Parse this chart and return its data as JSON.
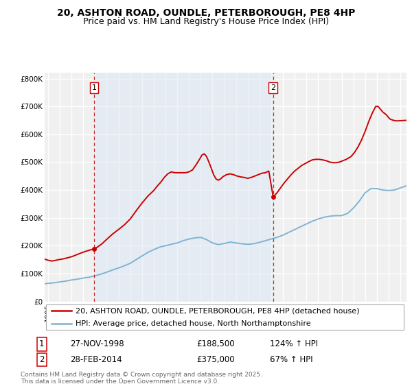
{
  "title": "20, ASHTON ROAD, OUNDLE, PETERBOROUGH, PE8 4HP",
  "subtitle": "Price paid vs. HM Land Registry's House Price Index (HPI)",
  "ylabel_ticks": [
    "£0",
    "£100K",
    "£200K",
    "£300K",
    "£400K",
    "£500K",
    "£600K",
    "£700K",
    "£800K"
  ],
  "ytick_values": [
    0,
    100000,
    200000,
    300000,
    400000,
    500000,
    600000,
    700000,
    800000
  ],
  "ylim": [
    0,
    820000
  ],
  "xlim_start": 1994.7,
  "xlim_end": 2025.5,
  "sale1_x": 1998.92,
  "sale1_y": 188500,
  "sale2_x": 2014.17,
  "sale2_y": 375000,
  "red_color": "#cc0000",
  "blue_color": "#7fb3d3",
  "vline_color": "#cc0000",
  "shade_color": "#dce8f5",
  "background_color": "#f0f0f0",
  "grid_color": "#ffffff",
  "legend_line1": "20, ASHTON ROAD, OUNDLE, PETERBOROUGH, PE8 4HP (detached house)",
  "legend_line2": "HPI: Average price, detached house, North Northamptonshire",
  "table_row1": [
    "1",
    "27-NOV-1998",
    "£188,500",
    "124% ↑ HPI"
  ],
  "table_row2": [
    "2",
    "28-FEB-2014",
    "£375,000",
    "67% ↑ HPI"
  ],
  "footer": "Contains HM Land Registry data © Crown copyright and database right 2025.\nThis data is licensed under the Open Government Licence v3.0.",
  "title_fontsize": 10,
  "subtitle_fontsize": 9,
  "tick_fontsize": 7.5,
  "legend_fontsize": 8,
  "table_fontsize": 8.5,
  "footer_fontsize": 6.5,
  "hpi_x": [
    1994.7,
    1995,
    1995.5,
    1996,
    1996.5,
    1997,
    1997.5,
    1998,
    1998.5,
    1999,
    1999.5,
    2000,
    2000.5,
    2001,
    2001.5,
    2002,
    2002.5,
    2003,
    2003.5,
    2004,
    2004.5,
    2005,
    2005.5,
    2006,
    2006.5,
    2007,
    2007.5,
    2008,
    2008.5,
    2009,
    2009.5,
    2010,
    2010.5,
    2011,
    2011.5,
    2012,
    2012.5,
    2013,
    2013.5,
    2014,
    2014.5,
    2015,
    2015.5,
    2016,
    2016.5,
    2017,
    2017.5,
    2018,
    2018.5,
    2019,
    2019.5,
    2020,
    2020.5,
    2021,
    2021.5,
    2022,
    2022.5,
    2023,
    2023.5,
    2024,
    2024.5,
    2025.5
  ],
  "hpi_y": [
    63000,
    65000,
    67000,
    70000,
    73000,
    77000,
    80000,
    84000,
    87000,
    92000,
    98000,
    105000,
    113000,
    120000,
    128000,
    137000,
    150000,
    163000,
    176000,
    186000,
    195000,
    200000,
    205000,
    210000,
    218000,
    224000,
    228000,
    230000,
    222000,
    210000,
    204000,
    208000,
    213000,
    210000,
    207000,
    205000,
    207000,
    212000,
    218000,
    224000,
    230000,
    238000,
    248000,
    258000,
    268000,
    278000,
    288000,
    296000,
    302000,
    306000,
    308000,
    308000,
    316000,
    335000,
    360000,
    390000,
    405000,
    405000,
    400000,
    398000,
    400000,
    415000
  ],
  "red_x": [
    1994.7,
    1995,
    1995.3,
    1995.6,
    1995.9,
    1996.2,
    1996.5,
    1996.8,
    1997.1,
    1997.4,
    1997.7,
    1998.0,
    1998.3,
    1998.6,
    1998.92,
    1999.2,
    1999.6,
    2000.0,
    2000.5,
    2001.0,
    2001.5,
    2002.0,
    2002.5,
    2003.0,
    2003.5,
    2004.0,
    2004.3,
    2004.6,
    2004.9,
    2005.2,
    2005.5,
    2005.8,
    2006.1,
    2006.4,
    2006.7,
    2007.0,
    2007.3,
    2007.6,
    2007.9,
    2008.1,
    2008.3,
    2008.5,
    2008.7,
    2008.9,
    2009.1,
    2009.3,
    2009.5,
    2009.7,
    2009.9,
    2010.2,
    2010.5,
    2010.8,
    2011.1,
    2011.4,
    2011.7,
    2012.0,
    2012.3,
    2012.6,
    2012.9,
    2013.2,
    2013.5,
    2013.8,
    2014.17,
    2014.5,
    2014.8,
    2015.1,
    2015.4,
    2015.7,
    2016.0,
    2016.3,
    2016.6,
    2016.9,
    2017.2,
    2017.5,
    2017.8,
    2018.1,
    2018.4,
    2018.7,
    2019.0,
    2019.3,
    2019.5,
    2019.8,
    2020.1,
    2020.4,
    2020.8,
    2021.1,
    2021.4,
    2021.7,
    2022.0,
    2022.3,
    2022.6,
    2022.9,
    2023.1,
    2023.3,
    2023.5,
    2023.8,
    2024.1,
    2024.4,
    2024.7,
    2025.5
  ],
  "red_y": [
    152000,
    148000,
    145000,
    147000,
    150000,
    152000,
    155000,
    158000,
    162000,
    167000,
    172000,
    177000,
    181000,
    185000,
    188500,
    195000,
    207000,
    223000,
    242000,
    258000,
    275000,
    296000,
    325000,
    353000,
    378000,
    398000,
    414000,
    428000,
    445000,
    458000,
    465000,
    462000,
    462000,
    462000,
    462000,
    465000,
    472000,
    490000,
    510000,
    525000,
    530000,
    520000,
    500000,
    478000,
    455000,
    440000,
    435000,
    440000,
    448000,
    455000,
    458000,
    455000,
    450000,
    447000,
    445000,
    442000,
    445000,
    450000,
    455000,
    460000,
    462000,
    468000,
    375000,
    390000,
    408000,
    425000,
    440000,
    455000,
    468000,
    478000,
    488000,
    495000,
    502000,
    508000,
    510000,
    510000,
    508000,
    505000,
    500000,
    498000,
    498000,
    500000,
    505000,
    510000,
    520000,
    535000,
    555000,
    580000,
    610000,
    645000,
    675000,
    700000,
    700000,
    690000,
    680000,
    670000,
    655000,
    650000,
    648000,
    650000
  ]
}
